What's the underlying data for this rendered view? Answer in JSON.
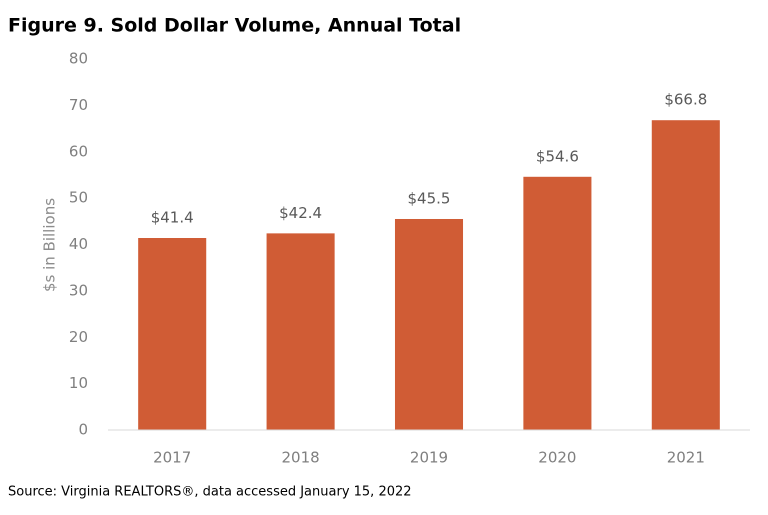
{
  "chart_data": {
    "type": "bar",
    "title": "Figure 9. Sold Dollar Volume, Annual Total",
    "y_label": "$s in Billions",
    "categories": [
      "2017",
      "2018",
      "2019",
      "2020",
      "2021"
    ],
    "values": [
      41.4,
      42.4,
      45.5,
      54.6,
      66.8
    ],
    "value_labels": [
      "$41.4",
      "$42.4",
      "$45.5",
      "$54.6",
      "$66.8"
    ],
    "color": "#d05c35",
    "ylim": [
      0,
      80
    ],
    "yticks": [
      0,
      10,
      20,
      30,
      40,
      50,
      60,
      70,
      80
    ],
    "grid": false,
    "source": "Source: Virginia REALTORS®, data accessed January 15, 2022"
  }
}
